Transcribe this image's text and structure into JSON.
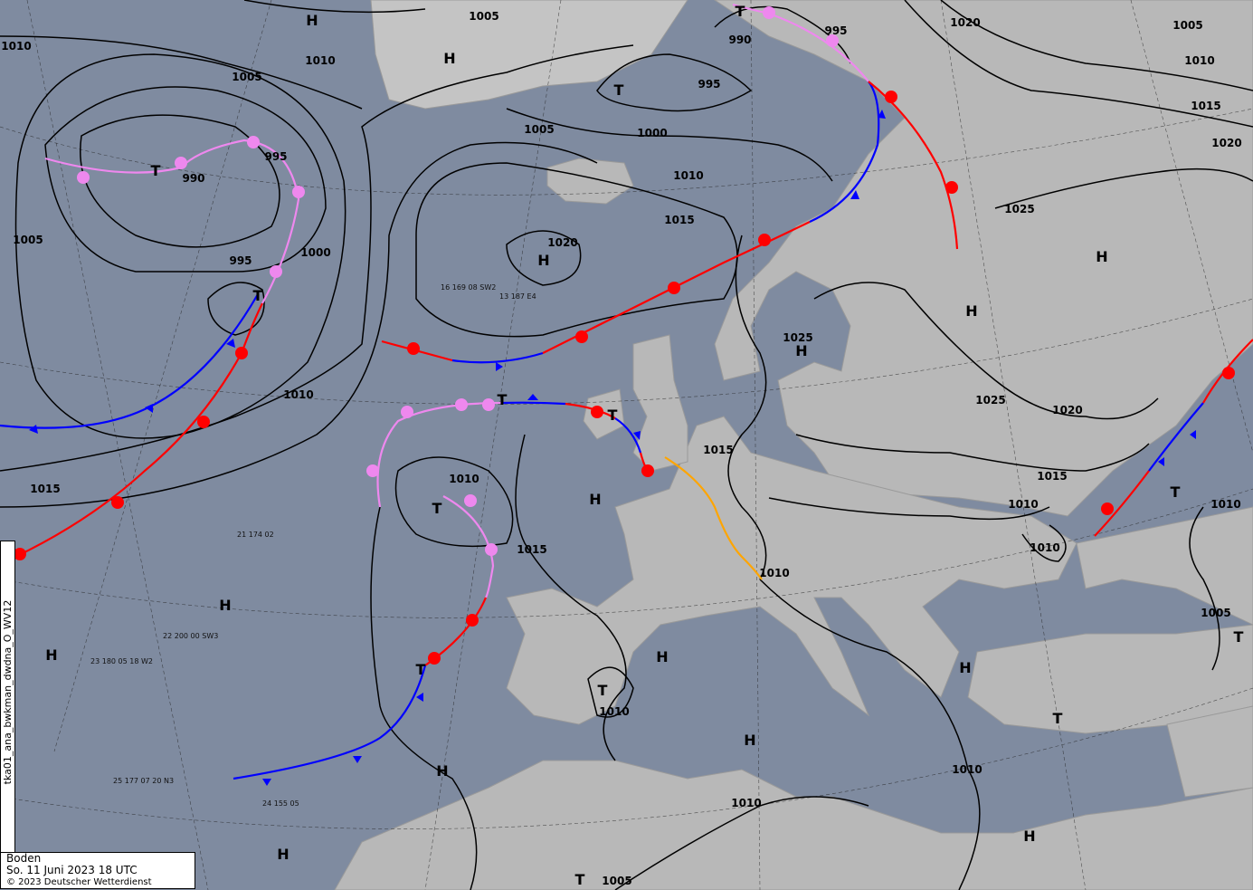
{
  "side_label": "tka01_ana_bwkman_dwdna_O_WV12",
  "legend": {
    "layer": "Boden",
    "datetime": "So. 11 Juni 2023 18 UTC",
    "copyright": "© 2023 Deutscher Wetterdienst"
  },
  "colors": {
    "sea": "#7f8ba0",
    "land": "#b9b9b9",
    "warm_front": "#ff0000",
    "cold_front": "#0000ff",
    "occlusion": "#ee88ee",
    "trough": "#ffa500"
  },
  "isobar_labels": [
    "1010",
    "1005",
    "1010",
    "1005",
    "1020",
    "1005",
    "1010",
    "995",
    "990",
    "995",
    "1000",
    "1005",
    "1010",
    "1015",
    "1020",
    "1015",
    "1020",
    "1025",
    "990",
    "995",
    "1005",
    "1000",
    "995",
    "1010",
    "1015",
    "1025",
    "1025",
    "1020",
    "1015",
    "1015",
    "1010",
    "1015",
    "1010",
    "1010",
    "1010",
    "1010",
    "1005",
    "1010",
    "1010",
    "1010",
    "1005"
  ],
  "high_labels": [
    "H",
    "H",
    "H",
    "H",
    "H",
    "H",
    "H",
    "H",
    "H",
    "H",
    "H",
    "H",
    "H",
    "H",
    "H"
  ],
  "low_labels": [
    "T",
    "T",
    "T",
    "T",
    "T",
    "T",
    "T",
    "T",
    "T",
    "T",
    "T",
    "T",
    "T"
  ],
  "sample_stations": [
    "23 180 05 18 W2",
    "22 200 00 SW3",
    "25 177 07 20 N3",
    "21 174 02",
    "24 155 05",
    "16 169 08 SW2",
    "13 187 E4"
  ]
}
